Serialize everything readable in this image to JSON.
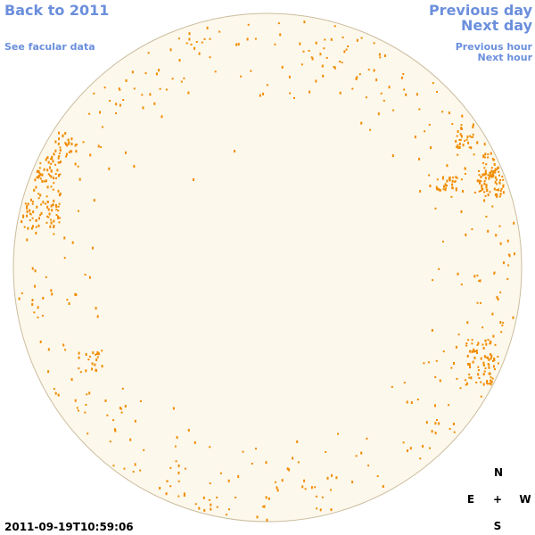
{
  "nav": {
    "back": "Back to 2011",
    "facular": "See facular data",
    "previous_day": "Previous day",
    "next_day": "Next day",
    "previous_hour": "Previous hour",
    "next_hour": "Next hour"
  },
  "timestamp": "2011-09-19T10:59:06",
  "compass": {
    "north": "N",
    "east": "E",
    "center": "+",
    "west": "W",
    "south": "S"
  }
}
